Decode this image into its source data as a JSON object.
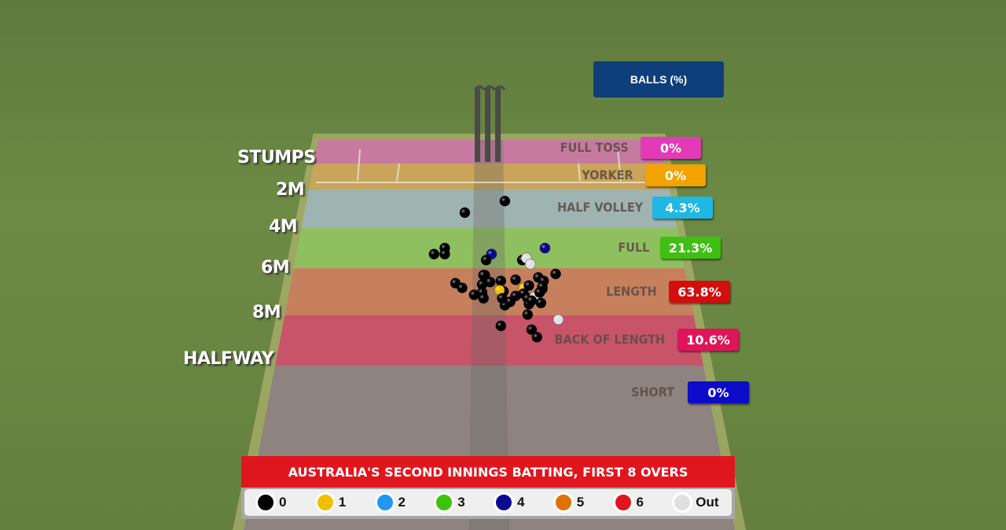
{
  "chart_data": {
    "type": "scatter",
    "title": "AUSTRALIA'S SECOND INNINGS BATTING, FIRST 8 OVERS",
    "panel_title": "BALLS (%)",
    "distance_markers": [
      "STUMPS",
      "2M",
      "4M",
      "6M",
      "8M",
      "HALFWAY"
    ],
    "zones": [
      {
        "name": "FULL TOSS",
        "pct": "0%",
        "color": "#e23bb5"
      },
      {
        "name": "YORKER",
        "pct": "0%",
        "color": "#f2a300"
      },
      {
        "name": "HALF VOLLEY",
        "pct": "4.3%",
        "color": "#1fb7e6"
      },
      {
        "name": "FULL",
        "pct": "21.3%",
        "color": "#3fbf12"
      },
      {
        "name": "LENGTH",
        "pct": "63.8%",
        "color": "#d50d0d"
      },
      {
        "name": "BACK OF LENGTH",
        "pct": "10.6%",
        "color": "#e0145a"
      },
      {
        "name": "SHORT",
        "pct": "0%",
        "color": "#0b0bc9"
      }
    ],
    "legend": [
      {
        "label": "0",
        "color": "#000000"
      },
      {
        "label": "1",
        "color": "#f0c000"
      },
      {
        "label": "2",
        "color": "#2196f3"
      },
      {
        "label": "3",
        "color": "#3cc40a"
      },
      {
        "label": "4",
        "color": "#0a0a90"
      },
      {
        "label": "5",
        "color": "#e07000"
      },
      {
        "label": "6",
        "color": "#e0161f"
      },
      {
        "label": "Out",
        "color": "#e0e0e0"
      }
    ],
    "balls_fields": [
      "length_m",
      "line_m",
      "result"
    ],
    "balls": [
      [
        2.6,
        0.12,
        "0"
      ],
      [
        3.2,
        -0.18,
        "0"
      ],
      [
        5.3,
        -0.41,
        "0"
      ],
      [
        5.0,
        -0.33,
        "0"
      ],
      [
        5.3,
        -0.33,
        "0"
      ],
      [
        5.3,
        0.02,
        "4"
      ],
      [
        5.0,
        0.42,
        "4"
      ],
      [
        5.6,
        -0.02,
        "0"
      ],
      [
        5.6,
        0.25,
        "0"
      ],
      [
        5.5,
        0.28,
        "Out"
      ],
      [
        5.8,
        0.31,
        "Out"
      ],
      [
        6.3,
        -0.03,
        "0"
      ],
      [
        6.3,
        -0.04,
        "0"
      ],
      [
        6.65,
        -0.25,
        "0"
      ],
      [
        6.85,
        -0.2,
        "0"
      ],
      [
        7.15,
        -0.11,
        "0"
      ],
      [
        6.7,
        -0.05,
        "0"
      ],
      [
        7.05,
        -0.05,
        "0"
      ],
      [
        7.3,
        -0.04,
        "0"
      ],
      [
        6.55,
        0.09,
        "0"
      ],
      [
        7.0,
        0.11,
        "0"
      ],
      [
        6.5,
        0.2,
        "0"
      ],
      [
        6.95,
        0.08,
        "1"
      ],
      [
        6.85,
        0.26,
        "1"
      ],
      [
        6.4,
        0.37,
        "0"
      ],
      [
        6.55,
        0.41,
        "0"
      ],
      [
        6.25,
        0.5,
        "0"
      ],
      [
        6.9,
        0.4,
        "0"
      ],
      [
        7.1,
        0.26,
        "0"
      ],
      [
        7.3,
        0.29,
        "0"
      ],
      [
        7.25,
        0.34,
        "Out"
      ],
      [
        7.55,
        0.3,
        "0"
      ],
      [
        7.5,
        0.39,
        "0"
      ],
      [
        7.6,
        0.12,
        "0"
      ],
      [
        7.3,
        0.1,
        "0"
      ],
      [
        7.45,
        0.16,
        "0"
      ],
      [
        6.8,
        0.4,
        "0"
      ],
      [
        7.05,
        0.38,
        "0"
      ],
      [
        6.6,
        0.01,
        "0"
      ],
      [
        7.4,
        0.32,
        "0"
      ],
      [
        6.75,
        0.3,
        "0"
      ],
      [
        7.2,
        0.2,
        "0"
      ],
      [
        8.0,
        0.29,
        "0"
      ],
      [
        8.45,
        0.09,
        "0"
      ],
      [
        8.6,
        0.32,
        "0"
      ],
      [
        8.9,
        0.36,
        "0"
      ],
      [
        8.2,
        0.52,
        "Out"
      ]
    ]
  }
}
